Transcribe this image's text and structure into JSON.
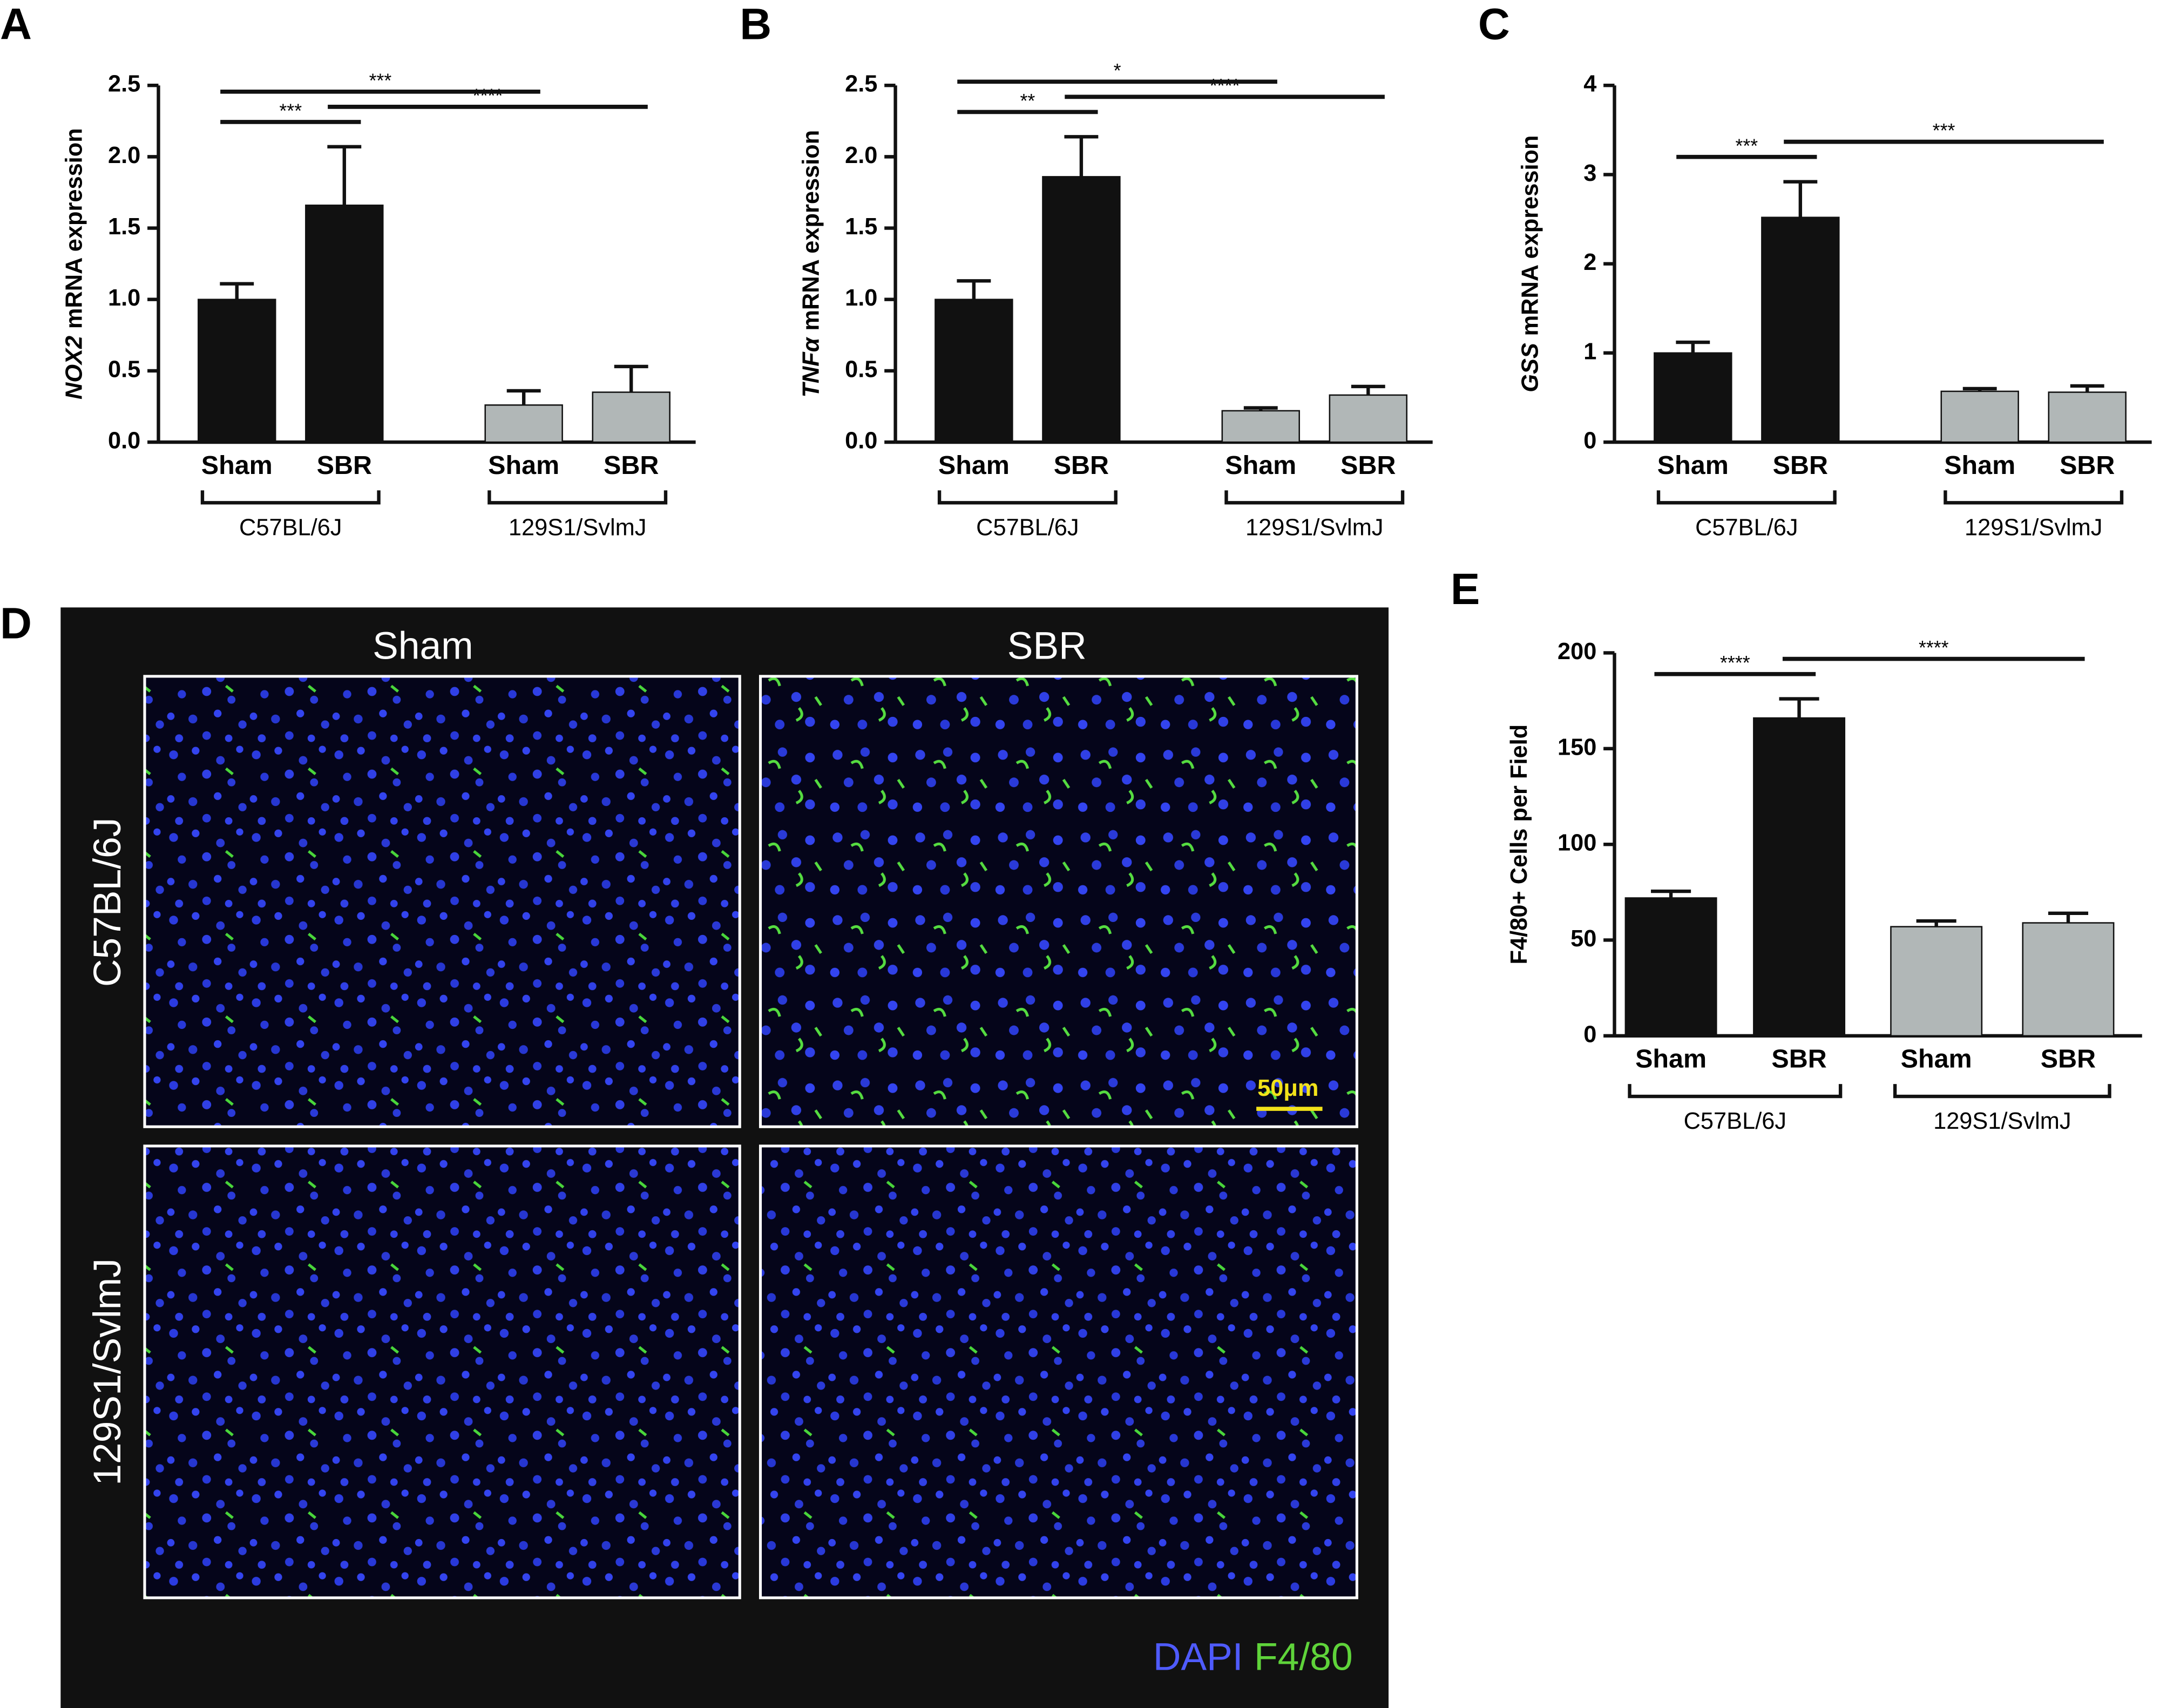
{
  "chart_data": [
    {
      "type": "bar",
      "panel": "A",
      "ylabel_gene": "NOX2",
      "ylabel": "mRNA expression",
      "categories": [
        "Sham",
        "SBR",
        "Sham",
        "SBR"
      ],
      "values": [
        1.0,
        1.66,
        0.26,
        0.35
      ],
      "errors": [
        0.11,
        0.41,
        0.1,
        0.18
      ],
      "colors": [
        "#111111",
        "#111111",
        "#b1b7b7",
        "#b1b7b7"
      ],
      "groups": [
        {
          "label": "C57BL/6J",
          "from": 0,
          "to": 1
        },
        {
          "label": "129S1/SvlmJ",
          "from": 2,
          "to": 3
        }
      ],
      "annotations": [
        {
          "text": "***",
          "from": 0,
          "to": 1
        },
        {
          "text": "****",
          "from": 1,
          "to": 3
        },
        {
          "text": "***",
          "from": 0,
          "to": 2
        }
      ],
      "ylim": [
        0,
        2.5
      ],
      "yticks": [
        {
          "value": 0,
          "label": "0.0"
        },
        {
          "value": 0.5,
          "label": "0.5"
        },
        {
          "value": 1,
          "label": "1.0"
        },
        {
          "value": 1.5,
          "label": "1.5"
        },
        {
          "value": 2,
          "label": "2.0"
        },
        {
          "value": 2.5,
          "label": "2.5"
        }
      ]
    },
    {
      "type": "bar",
      "panel": "B",
      "ylabel_gene": "TNFα",
      "ylabel": "mRNA expression",
      "categories": [
        "Sham",
        "SBR",
        "Sham",
        "SBR"
      ],
      "values": [
        1.0,
        1.86,
        0.22,
        0.33
      ],
      "errors": [
        0.13,
        0.28,
        0.02,
        0.06
      ],
      "colors": [
        "#111111",
        "#111111",
        "#b1b7b7",
        "#b1b7b7"
      ],
      "groups": [
        {
          "label": "C57BL/6J",
          "from": 0,
          "to": 1
        },
        {
          "label": "129S1/SvlmJ",
          "from": 2,
          "to": 3
        }
      ],
      "annotations": [
        {
          "text": "**",
          "from": 0,
          "to": 1
        },
        {
          "text": "****",
          "from": 1,
          "to": 3
        },
        {
          "text": "*",
          "from": 0,
          "to": 2
        }
      ],
      "ylim": [
        0,
        2.5
      ],
      "yticks": [
        {
          "value": 0,
          "label": "0.0"
        },
        {
          "value": 0.5,
          "label": "0.5"
        },
        {
          "value": 1,
          "label": "1.0"
        },
        {
          "value": 1.5,
          "label": "1.5"
        },
        {
          "value": 2,
          "label": "2.0"
        },
        {
          "value": 2.5,
          "label": "2.5"
        }
      ]
    },
    {
      "type": "bar",
      "panel": "C",
      "ylabel_gene": "GSS",
      "ylabel": "mRNA expression",
      "categories": [
        "Sham",
        "SBR",
        "Sham",
        "SBR"
      ],
      "values": [
        1.0,
        2.52,
        0.57,
        0.56
      ],
      "errors": [
        0.12,
        0.4,
        0.03,
        0.07
      ],
      "colors": [
        "#111111",
        "#111111",
        "#b1b7b7",
        "#b1b7b7"
      ],
      "groups": [
        {
          "label": "C57BL/6J",
          "from": 0,
          "to": 1
        },
        {
          "label": "129S1/SvlmJ",
          "from": 2,
          "to": 3
        }
      ],
      "annotations": [
        {
          "text": "***",
          "from": 0,
          "to": 1
        },
        {
          "text": "***",
          "from": 1,
          "to": 3
        }
      ],
      "ylim": [
        0,
        4
      ],
      "yticks": [
        0,
        1,
        2,
        3,
        4
      ]
    },
    {
      "type": "bar",
      "panel": "E",
      "ylabel": "F4/80+ Cells per Field",
      "categories": [
        "Sham",
        "SBR",
        "Sham",
        "SBR"
      ],
      "values": [
        72,
        166,
        57,
        59
      ],
      "errors": [
        3.5,
        10,
        3,
        5
      ],
      "colors": [
        "#111111",
        "#111111",
        "#b1b7b7",
        "#b1b7b7"
      ],
      "groups": [
        {
          "label": "C57BL/6J",
          "from": 0,
          "to": 1
        },
        {
          "label": "129S1/SvlmJ",
          "from": 2,
          "to": 3
        }
      ],
      "annotations": [
        {
          "text": "****",
          "from": 0,
          "to": 1
        },
        {
          "text": "****",
          "from": 1,
          "to": 3
        }
      ],
      "ylim": [
        0,
        200
      ],
      "yticks": [
        0,
        50,
        100,
        150,
        200
      ]
    }
  ],
  "micrograph": {
    "panel": "D",
    "columns": [
      "Sham",
      "SBR"
    ],
    "rows": [
      "C57BL/6J",
      "129S1/SvlmJ"
    ],
    "scale_bar": "50μm",
    "stains": [
      {
        "name": "DAPI",
        "color": "#4f5bff"
      },
      {
        "name": "F4/80",
        "color": "#5fd43a"
      }
    ]
  }
}
